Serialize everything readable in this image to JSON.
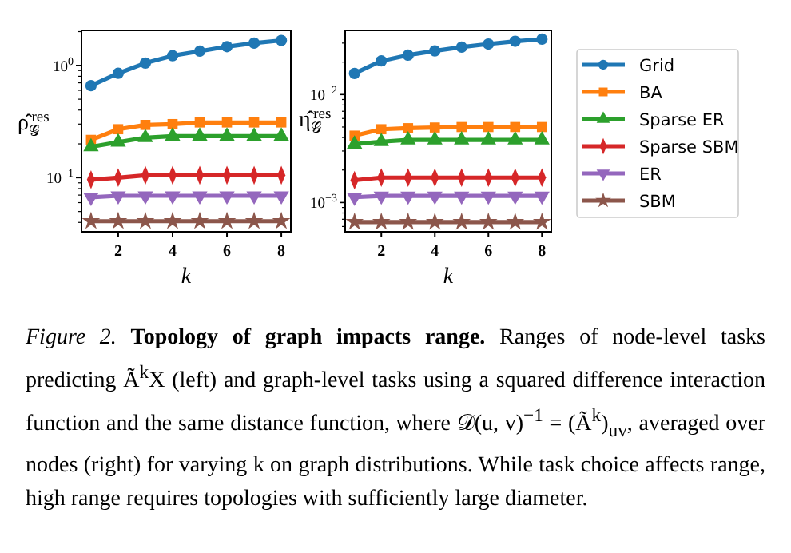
{
  "chart_data": [
    {
      "type": "line",
      "ylabel": "ρ̂$_{𝒢}$$^{res}$",
      "xlabel": "k",
      "log": "y",
      "grid": false,
      "legend": "right",
      "x": [
        1,
        2,
        3,
        4,
        5,
        6,
        7,
        8
      ],
      "xlim": [
        0.65,
        8.35
      ],
      "xticks": [
        2,
        4,
        6,
        8
      ],
      "ylim": [
        0.033,
        2.05
      ],
      "yticks": [
        {
          "value": 0.04,
          "label": null
        },
        {
          "value": 0.05,
          "label": null
        },
        {
          "value": 0.06,
          "label": null
        },
        {
          "value": 0.07,
          "label": null
        },
        {
          "value": 0.08,
          "label": null
        },
        {
          "value": 0.09,
          "label": null
        },
        {
          "value": 0.1,
          "label": "10$^{−1}$"
        },
        {
          "value": 0.2,
          "label": null
        },
        {
          "value": 0.3,
          "label": null
        },
        {
          "value": 0.4,
          "label": null
        },
        {
          "value": 0.5,
          "label": null
        },
        {
          "value": 0.6,
          "label": null
        },
        {
          "value": 0.7,
          "label": null
        },
        {
          "value": 0.8,
          "label": null
        },
        {
          "value": 0.9,
          "label": null
        },
        {
          "value": 1,
          "label": "10$^{0}$"
        },
        {
          "value": 2,
          "label": null
        }
      ],
      "annotations": [
        "Figure 2.",
        "Topology of graph impacts range.",
        "Ranges of node-level tasks predicting Ã$^{k}$X (left) and graph-level tasks using a squared difference interaction function and the same distance function, where 𝒟(u, v)$^{−1}$ = (Ã$^{k}$)$_{uv}$, averaged over nodes (right) for varying k on graph distributions. While task choice affects range, high range requires topologies with sufficiently large diameter."
      ],
      "series": [
        {
          "name": "Grid",
          "color": "#1f77b4",
          "marker": "circle",
          "values": [
            0.66,
            0.85,
            1.05,
            1.22,
            1.34,
            1.47,
            1.58,
            1.67
          ]
        },
        {
          "name": "BA",
          "color": "#ff7f0e",
          "marker": "square",
          "values": [
            0.217,
            0.27,
            0.295,
            0.3,
            0.31,
            0.31,
            0.31,
            0.31
          ]
        },
        {
          "name": "Sparse ER",
          "color": "#2ca02c",
          "marker": "triangle",
          "values": [
            0.188,
            0.207,
            0.227,
            0.234,
            0.234,
            0.234,
            0.234,
            0.234
          ]
        },
        {
          "name": "Sparse SBM",
          "color": "#d62728",
          "marker": "diamond",
          "values": [
            0.096,
            0.1,
            0.105,
            0.105,
            0.105,
            0.105,
            0.105,
            0.105
          ]
        },
        {
          "name": "ER",
          "color": "#9467bd",
          "marker": "triangle-down",
          "values": [
            0.067,
            0.069,
            0.069,
            0.069,
            0.069,
            0.069,
            0.069,
            0.069
          ]
        },
        {
          "name": "SBM",
          "color": "#8c564b",
          "marker": "star",
          "values": [
            0.041,
            0.041,
            0.041,
            0.041,
            0.041,
            0.041,
            0.041,
            0.041
          ]
        }
      ]
    },
    {
      "type": "line",
      "ylabel": "η̂$_{𝒢}$$^{res}$",
      "xlabel": "k",
      "log": "y",
      "grid": false,
      "x": [
        1,
        2,
        3,
        4,
        5,
        6,
        7,
        8
      ],
      "xlim": [
        0.65,
        8.35
      ],
      "xticks": [
        2,
        4,
        6,
        8
      ],
      "ylim": [
        0.000536,
        0.0393
      ],
      "yticks": [
        {
          "value": 0.0006,
          "label": null
        },
        {
          "value": 0.0007,
          "label": null
        },
        {
          "value": 0.0008,
          "label": null
        },
        {
          "value": 0.0009,
          "label": null
        },
        {
          "value": 0.001,
          "label": "10$^{−3}$"
        },
        {
          "value": 0.002,
          "label": null
        },
        {
          "value": 0.003,
          "label": null
        },
        {
          "value": 0.004,
          "label": null
        },
        {
          "value": 0.005,
          "label": null
        },
        {
          "value": 0.006,
          "label": null
        },
        {
          "value": 0.007,
          "label": null
        },
        {
          "value": 0.008,
          "label": null
        },
        {
          "value": 0.009,
          "label": null
        },
        {
          "value": 0.01,
          "label": "10$^{−2}$"
        },
        {
          "value": 0.02,
          "label": null
        },
        {
          "value": 0.03,
          "label": null
        }
      ],
      "series": [
        {
          "color": "#1f77b4",
          "marker": "circle",
          "values": [
            0.0157,
            0.0205,
            0.0232,
            0.0254,
            0.0275,
            0.0294,
            0.0312,
            0.0326
          ]
        },
        {
          "color": "#ff7f0e",
          "marker": "square",
          "values": [
            0.00416,
            0.00477,
            0.00488,
            0.00495,
            0.005,
            0.005,
            0.005,
            0.005
          ]
        },
        {
          "color": "#2ca02c",
          "marker": "triangle",
          "values": [
            0.00347,
            0.00366,
            0.0038,
            0.0038,
            0.0038,
            0.0038,
            0.0038,
            0.0038
          ]
        },
        {
          "color": "#d62728",
          "marker": "diamond",
          "values": [
            0.00161,
            0.0017,
            0.0017,
            0.0017,
            0.0017,
            0.0017,
            0.0017,
            0.0017
          ]
        },
        {
          "color": "#9467bd",
          "marker": "triangle-down",
          "values": [
            0.00112,
            0.00115,
            0.00115,
            0.00115,
            0.00115,
            0.00115,
            0.00115,
            0.00115
          ]
        },
        {
          "color": "#8c564b",
          "marker": "star",
          "values": [
            0.00066,
            0.00066,
            0.00066,
            0.00066,
            0.00066,
            0.00066,
            0.00066,
            0.00066
          ]
        }
      ]
    }
  ]
}
